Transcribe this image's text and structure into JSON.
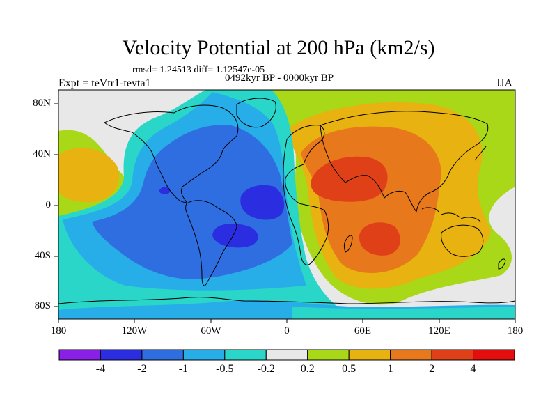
{
  "title": "Velocity Potential at 200 hPa (km2/s)",
  "stats": "rmsd= 1.24513 diff= 1.12547e-05",
  "experiment": "Expt = teVtr1-tevta1",
  "period": "0492kyr BP - 0000kyr BP",
  "season": "JJA",
  "lat_labels": [
    "80N",
    "40N",
    "0",
    "40S",
    "80S"
  ],
  "lon_labels": [
    "180",
    "120W",
    "60W",
    "0",
    "60E",
    "120E",
    "180"
  ],
  "colorbar": {
    "labels": [
      "-4",
      "-2",
      "-1",
      "-0.5",
      "-0.2",
      "0.2",
      "0.5",
      "1",
      "2",
      "4"
    ],
    "colors": [
      "#8a1fe6",
      "#2a2ee0",
      "#2f6ee0",
      "#27aee8",
      "#2ad6c8",
      "#e8e8e8",
      "#a8d818",
      "#e8b210",
      "#e8781c",
      "#e04018",
      "#e40e0e"
    ]
  }
}
